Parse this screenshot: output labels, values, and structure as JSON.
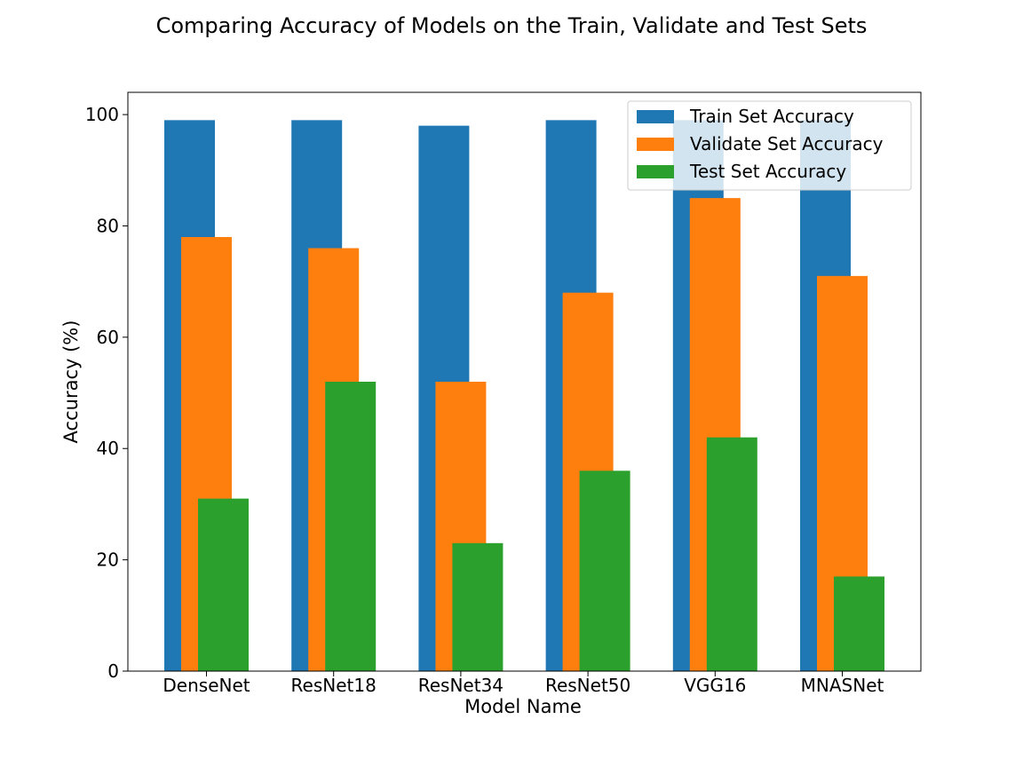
{
  "chart_data": {
    "type": "bar",
    "title": "Comparing Accuracy of Models on the Train, Validate and Test Sets",
    "xlabel": "Model Name",
    "ylabel": "Accuracy (%)",
    "categories": [
      "DenseNet",
      "ResNet18",
      "ResNet34",
      "ResNet50",
      "VGG16",
      "MNASNet"
    ],
    "series": [
      {
        "name": "Train Set Accuracy",
        "color": "#1f77b4",
        "values": [
          99,
          99,
          98,
          99,
          99,
          99
        ]
      },
      {
        "name": "Validate Set Accuracy",
        "color": "#ff7f0e",
        "values": [
          78,
          76,
          52,
          68,
          85,
          71
        ]
      },
      {
        "name": "Test Set Accuracy",
        "color": "#2ca02c",
        "values": [
          31,
          52,
          23,
          36,
          42,
          17
        ]
      }
    ],
    "ylim": [
      0,
      104
    ],
    "yticks": [
      0,
      20,
      40,
      60,
      80,
      100
    ],
    "grid": false,
    "legend_position": "top-right"
  }
}
